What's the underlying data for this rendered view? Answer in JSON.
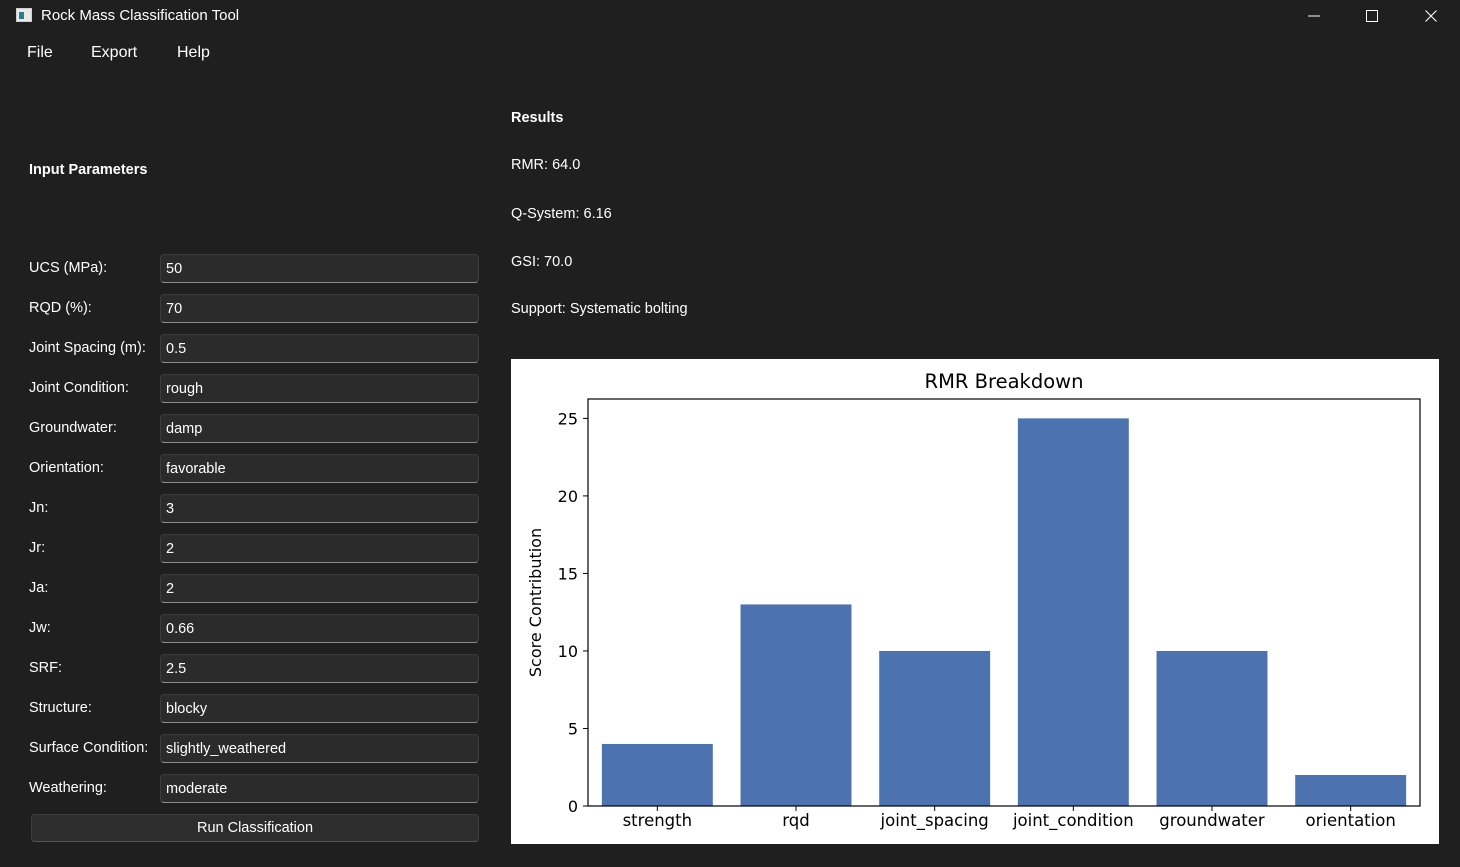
{
  "window": {
    "title": "Rock Mass Classification Tool"
  },
  "menu": [
    "File",
    "Export",
    "Help"
  ],
  "input_panel": {
    "title": "Input Parameters",
    "fields": [
      {
        "label": "UCS (MPa):",
        "value": "50"
      },
      {
        "label": "RQD (%):",
        "value": "70"
      },
      {
        "label": "Joint Spacing (m):",
        "value": "0.5"
      },
      {
        "label": "Joint Condition:",
        "value": "rough"
      },
      {
        "label": "Groundwater:",
        "value": "damp"
      },
      {
        "label": "Orientation:",
        "value": "favorable"
      },
      {
        "label": "Jn:",
        "value": "3"
      },
      {
        "label": "Jr:",
        "value": "2"
      },
      {
        "label": "Ja:",
        "value": "2"
      },
      {
        "label": "Jw:",
        "value": "0.66"
      },
      {
        "label": "SRF:",
        "value": "2.5"
      },
      {
        "label": "Structure:",
        "value": "blocky"
      },
      {
        "label": "Surface Condition:",
        "value": "slightly_weathered"
      },
      {
        "label": "Weathering:",
        "value": "moderate"
      }
    ],
    "run_button": "Run Classification"
  },
  "results": {
    "title": "Results",
    "lines": [
      "RMR: 64.0",
      "Q-System: 6.16",
      "GSI: 70.0",
      "Support: Systematic bolting"
    ]
  },
  "colors": {
    "background": "#1f1f1f",
    "bar": "#4c72b0"
  },
  "chart_data": {
    "type": "bar",
    "title": "RMR Breakdown",
    "xlabel": "",
    "ylabel": "Score Contribution",
    "categories": [
      "strength",
      "rqd",
      "joint_spacing",
      "joint_condition",
      "groundwater",
      "orientation"
    ],
    "values": [
      4,
      13,
      10,
      25,
      10,
      2
    ],
    "ylim": [
      0,
      26.25
    ],
    "yticks": [
      0,
      5,
      10,
      15,
      20,
      25
    ],
    "grid": false
  }
}
